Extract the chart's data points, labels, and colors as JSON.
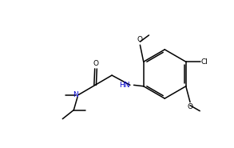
{
  "bg_color": "#ffffff",
  "line_color": "#000000",
  "label_color_N": "#0000cd",
  "figsize": [
    2.93,
    1.85
  ],
  "dpi": 100,
  "xlim": [
    0,
    10
  ],
  "ylim": [
    0,
    6.3
  ]
}
